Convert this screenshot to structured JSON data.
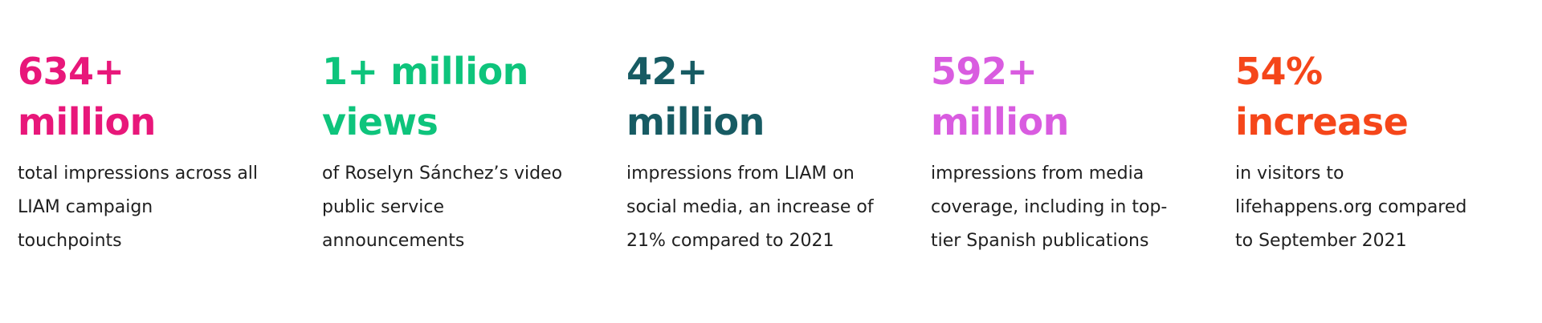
{
  "stats": [
    {
      "headline": [
        "634+",
        "million"
      ],
      "color": "#e8177a",
      "body": [
        "total impressions across all",
        "LIAM campaign",
        "touchpoints"
      ]
    },
    {
      "headline": [
        "1+ million",
        "views"
      ],
      "color": "#0ec47c",
      "body": [
        "of Roselyn Sánchez’s video",
        "public service",
        "announcements"
      ]
    },
    {
      "headline": [
        "42+",
        "million"
      ],
      "color": "#175b63",
      "body": [
        "impressions from LIAM on",
        "social media, an increase of",
        "21% compared to 2021"
      ]
    },
    {
      "headline": [
        "592+",
        "million"
      ],
      "color": "#d95ce0",
      "body": [
        "impressions from media",
        "coverage, including in top-",
        "tier Spanish publications"
      ]
    },
    {
      "headline": [
        "54%",
        "increase"
      ],
      "color": "#f5461a",
      "body": [
        "in visitors to",
        "lifehappens.org compared",
        "to September 2021"
      ]
    }
  ]
}
